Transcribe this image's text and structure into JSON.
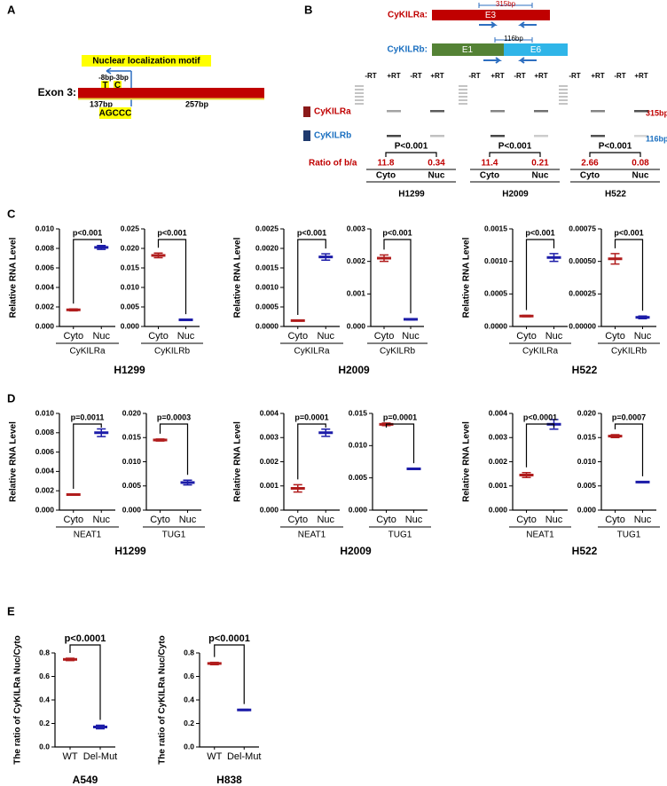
{
  "panel_a": {
    "label": "A",
    "motif": "Nuclear localization motif",
    "positions": "-8bp-3bp",
    "bases": [
      "T",
      "C"
    ],
    "exon": "Exon 3:",
    "segments": [
      "137bp",
      "257bp"
    ],
    "sequence": "AGCCC"
  },
  "panel_b": {
    "label": "B",
    "constructs": [
      {
        "name": "CyKILRa:",
        "size": "315bp",
        "exons": [
          "E3"
        ]
      },
      {
        "name": "CyKILRb:",
        "size": "116bp",
        "exons": [
          "E1",
          "E6"
        ]
      }
    ],
    "lanes": [
      "-RT",
      "+RT",
      "-RT",
      "+RT"
    ],
    "rows": [
      {
        "name": "CyKILRa",
        "size": "315bp"
      },
      {
        "name": "CyKILRb",
        "size": "116bp"
      }
    ],
    "ratio_label": "Ratio of b/a",
    "groups": [
      {
        "cell_line": "H1299",
        "p": "P<0.001",
        "fractions": [
          "Cyto",
          "Nuc"
        ],
        "ratios": [
          11.8,
          0.34
        ]
      },
      {
        "cell_line": "H2009",
        "p": "P<0.001",
        "fractions": [
          "Cyto",
          "Nuc"
        ],
        "ratios": [
          11.4,
          0.21
        ]
      },
      {
        "cell_line": "H522",
        "p": "P<0.001",
        "fractions": [
          "Cyto",
          "Nuc"
        ],
        "ratios": [
          2.66,
          0.08
        ]
      }
    ]
  },
  "figure_panels": [
    {
      "label": "C",
      "cell_lines": [
        "H1299",
        "H2009",
        "H522"
      ]
    },
    {
      "label": "D",
      "cell_lines": [
        "H1299",
        "H2009",
        "H522"
      ]
    },
    {
      "label": "E",
      "cell_lines": [
        "A549",
        "H838"
      ]
    }
  ],
  "chart_data": [
    {
      "type": "errorbar",
      "ylabel": "Relative RNA Level",
      "xlabel": "CyKILRa",
      "p_label": "p<0.001",
      "categories": [
        "Cyto",
        "Nuc"
      ],
      "values": [
        0.0017,
        0.0081
      ],
      "errors": [
        0.0001,
        0.0002
      ],
      "colors": [
        "#b01c1c",
        "#1c1ca8"
      ],
      "ylim": [
        0,
        0.01
      ],
      "yticks": [
        {
          "value": 0,
          "label": "0.000"
        },
        {
          "value": 0.002,
          "label": "0.002"
        },
        {
          "value": 0.004,
          "label": "0.004"
        },
        {
          "value": 0.006,
          "label": "0.006"
        },
        {
          "value": 0.008,
          "label": "0.008"
        },
        {
          "value": 0.01,
          "label": "0.010"
        }
      ]
    },
    {
      "type": "errorbar",
      "xlabel": "CyKILRb",
      "p_label": "p<0.001",
      "categories": [
        "Cyto",
        "Nuc"
      ],
      "values": [
        0.0182,
        0.0017
      ],
      "errors": [
        0.0006,
        0.0001
      ],
      "colors": [
        "#b01c1c",
        "#1c1ca8"
      ],
      "ylim": [
        0,
        0.025
      ],
      "yticks": [
        {
          "value": 0,
          "label": "0.000"
        },
        {
          "value": 0.005,
          "label": "0.005"
        },
        {
          "value": 0.01,
          "label": "0.010"
        },
        {
          "value": 0.015,
          "label": "0.015"
        },
        {
          "value": 0.02,
          "label": "0.020"
        },
        {
          "value": 0.025,
          "label": "0.025"
        }
      ]
    },
    {
      "type": "errorbar",
      "ylabel": "Relative RNA Level",
      "xlabel": "CyKILRa",
      "p_label": "p<0.001",
      "categories": [
        "Cyto",
        "Nuc"
      ],
      "values": [
        0.00015,
        0.00178
      ],
      "errors": [
        1e-05,
        8e-05
      ],
      "colors": [
        "#b01c1c",
        "#1c1ca8"
      ],
      "ylim": [
        0,
        0.0025
      ],
      "yticks": [
        {
          "value": 0,
          "label": "0.0000"
        },
        {
          "value": 0.0005,
          "label": "0.0005"
        },
        {
          "value": 0.001,
          "label": "0.0010"
        },
        {
          "value": 0.0015,
          "label": "0.0015"
        },
        {
          "value": 0.002,
          "label": "0.0020"
        },
        {
          "value": 0.0025,
          "label": "0.0025"
        }
      ]
    },
    {
      "type": "errorbar",
      "xlabel": "CyKILRb",
      "p_label": "p<0.001",
      "categories": [
        "Cyto",
        "Nuc"
      ],
      "values": [
        0.0021,
        0.00022
      ],
      "errors": [
        0.0001,
        2e-05
      ],
      "colors": [
        "#b01c1c",
        "#1c1ca8"
      ],
      "ylim": [
        0,
        0.003
      ],
      "yticks": [
        {
          "value": 0,
          "label": "0.000"
        },
        {
          "value": 0.001,
          "label": "0.001"
        },
        {
          "value": 0.002,
          "label": "0.002"
        },
        {
          "value": 0.003,
          "label": "0.003"
        }
      ]
    },
    {
      "type": "errorbar",
      "ylabel": "Relative RNA Level",
      "xlabel": "CyKILRa",
      "p_label": "p<0.001",
      "categories": [
        "Cyto",
        "Nuc"
      ],
      "values": [
        0.00016,
        0.00106
      ],
      "errors": [
        1e-05,
        6e-05
      ],
      "colors": [
        "#b01c1c",
        "#1c1ca8"
      ],
      "ylim": [
        0,
        0.0015
      ],
      "yticks": [
        {
          "value": 0,
          "label": "0.0000"
        },
        {
          "value": 0.0005,
          "label": "0.0005"
        },
        {
          "value": 0.001,
          "label": "0.0010"
        },
        {
          "value": 0.0015,
          "label": "0.0015"
        }
      ]
    },
    {
      "type": "errorbar",
      "xlabel": "CyKILRb",
      "p_label": "p<0.001",
      "categories": [
        "Cyto",
        "Nuc"
      ],
      "values": [
        0.00052,
        7e-05
      ],
      "errors": [
        4e-05,
        1e-05
      ],
      "colors": [
        "#b01c1c",
        "#1c1ca8"
      ],
      "ylim": [
        0,
        0.00075
      ],
      "yticks": [
        {
          "value": 0,
          "label": "0.00000"
        },
        {
          "value": 0.00025,
          "label": "0.00025"
        },
        {
          "value": 0.0005,
          "label": "0.00050"
        },
        {
          "value": 0.00075,
          "label": "0.00075"
        }
      ]
    },
    {
      "type": "errorbar",
      "ylabel": "Relative RNA Level",
      "xlabel": "NEAT1",
      "p_label": "p=0.0011",
      "categories": [
        "Cyto",
        "Nuc"
      ],
      "values": [
        0.0016,
        0.008
      ],
      "errors": [
        5e-05,
        0.0004
      ],
      "colors": [
        "#b01c1c",
        "#1c1ca8"
      ],
      "ylim": [
        0,
        0.01
      ],
      "yticks": [
        {
          "value": 0,
          "label": "0.000"
        },
        {
          "value": 0.002,
          "label": "0.002"
        },
        {
          "value": 0.004,
          "label": "0.004"
        },
        {
          "value": 0.006,
          "label": "0.006"
        },
        {
          "value": 0.008,
          "label": "0.008"
        },
        {
          "value": 0.01,
          "label": "0.010"
        }
      ]
    },
    {
      "type": "errorbar",
      "xlabel": "TUG1",
      "p_label": "p=0.0003",
      "categories": [
        "Cyto",
        "Nuc"
      ],
      "values": [
        0.0145,
        0.0057
      ],
      "errors": [
        0.0002,
        0.0005
      ],
      "colors": [
        "#b01c1c",
        "#1c1ca8"
      ],
      "ylim": [
        0,
        0.02
      ],
      "yticks": [
        {
          "value": 0,
          "label": "0.000"
        },
        {
          "value": 0.005,
          "label": "0.005"
        },
        {
          "value": 0.01,
          "label": "0.010"
        },
        {
          "value": 0.015,
          "label": "0.015"
        },
        {
          "value": 0.02,
          "label": "0.020"
        }
      ]
    },
    {
      "type": "errorbar",
      "ylabel": "Relative RNA Level",
      "xlabel": "NEAT1",
      "p_label": "p=0.0001",
      "categories": [
        "Cyto",
        "Nuc"
      ],
      "values": [
        0.0009,
        0.0032
      ],
      "errors": [
        0.00015,
        0.00015
      ],
      "colors": [
        "#b01c1c",
        "#1c1ca8"
      ],
      "ylim": [
        0,
        0.004
      ],
      "yticks": [
        {
          "value": 0,
          "label": "0.000"
        },
        {
          "value": 0.001,
          "label": "0.001"
        },
        {
          "value": 0.002,
          "label": "0.002"
        },
        {
          "value": 0.003,
          "label": "0.003"
        },
        {
          "value": 0.004,
          "label": "0.004"
        }
      ]
    },
    {
      "type": "errorbar",
      "xlabel": "TUG1",
      "p_label": "p=0.0001",
      "categories": [
        "Cyto",
        "Nuc"
      ],
      "values": [
        0.0133,
        0.0064
      ],
      "errors": [
        0.0002,
        5e-05
      ],
      "colors": [
        "#b01c1c",
        "#1c1ca8"
      ],
      "ylim": [
        0,
        0.015
      ],
      "yticks": [
        {
          "value": 0,
          "label": "0.000"
        },
        {
          "value": 0.005,
          "label": "0.005"
        },
        {
          "value": 0.01,
          "label": "0.010"
        },
        {
          "value": 0.015,
          "label": "0.015"
        }
      ]
    },
    {
      "type": "errorbar",
      "ylabel": "Relative RNA Level",
      "xlabel": "NEAT1",
      "p_label": "p<0.0001",
      "categories": [
        "Cyto",
        "Nuc"
      ],
      "values": [
        0.00145,
        0.00355
      ],
      "errors": [
        0.0001,
        0.0002
      ],
      "colors": [
        "#b01c1c",
        "#1c1ca8"
      ],
      "ylim": [
        0,
        0.004
      ],
      "yticks": [
        {
          "value": 0,
          "label": "0.000"
        },
        {
          "value": 0.001,
          "label": "0.001"
        },
        {
          "value": 0.002,
          "label": "0.002"
        },
        {
          "value": 0.003,
          "label": "0.003"
        },
        {
          "value": 0.004,
          "label": "0.004"
        }
      ]
    },
    {
      "type": "errorbar",
      "xlabel": "TUG1",
      "p_label": "p=0.0007",
      "categories": [
        "Cyto",
        "Nuc"
      ],
      "values": [
        0.0153,
        0.0058
      ],
      "errors": [
        0.0003,
        0.0001
      ],
      "colors": [
        "#b01c1c",
        "#1c1ca8"
      ],
      "ylim": [
        0,
        0.02
      ],
      "yticks": [
        {
          "value": 0,
          "label": "0.000"
        },
        {
          "value": 0.005,
          "label": "0.005"
        },
        {
          "value": 0.01,
          "label": "0.010"
        },
        {
          "value": 0.015,
          "label": "0.015"
        },
        {
          "value": 0.02,
          "label": "0.020"
        }
      ]
    },
    {
      "type": "errorbar",
      "ylabel": "The ratio of CyKILRa Nuc/Cyto",
      "p_label": "p<0.0001",
      "categories": [
        "WT",
        "Del-Mut"
      ],
      "values": [
        0.745,
        0.17
      ],
      "errors": [
        0.01,
        0.015
      ],
      "colors": [
        "#b01c1c",
        "#1c1ca8"
      ],
      "ylim": [
        0,
        0.8
      ],
      "yticks": [
        {
          "value": 0,
          "label": "0.0"
        },
        {
          "value": 0.2,
          "label": "0.2"
        },
        {
          "value": 0.4,
          "label": "0.4"
        },
        {
          "value": 0.6,
          "label": "0.6"
        },
        {
          "value": 0.8,
          "label": "0.8"
        }
      ]
    },
    {
      "type": "errorbar",
      "ylabel": "The ratio of CyKILRa Nuc/Cyto",
      "p_label": "p<0.0001",
      "categories": [
        "WT",
        "Del-Mut"
      ],
      "values": [
        0.71,
        0.315
      ],
      "errors": [
        0.01,
        0.005
      ],
      "colors": [
        "#b01c1c",
        "#1c1ca8"
      ],
      "ylim": [
        0,
        0.8
      ],
      "yticks": [
        {
          "value": 0,
          "label": "0.0"
        },
        {
          "value": 0.2,
          "label": "0.2"
        },
        {
          "value": 0.4,
          "label": "0.4"
        },
        {
          "value": 0.6,
          "label": "0.6"
        },
        {
          "value": 0.8,
          "label": "0.8"
        }
      ]
    }
  ]
}
